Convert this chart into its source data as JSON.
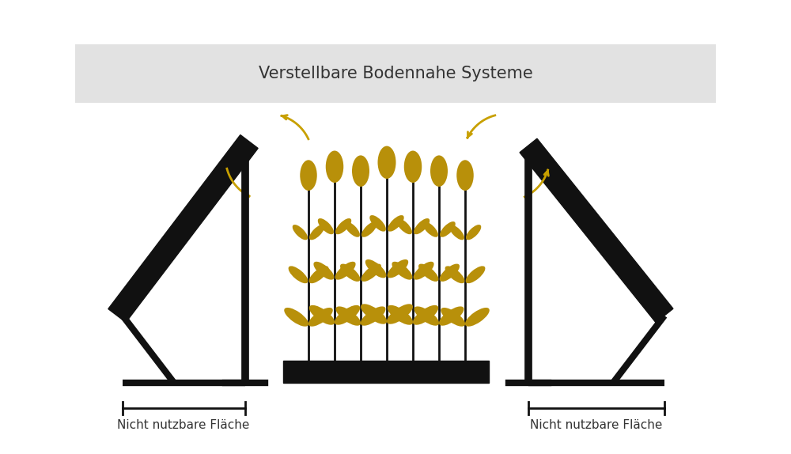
{
  "title": "Verstellbare Bodennahe Systeme",
  "title_fontsize": 15,
  "background_color": "#ffffff",
  "header_bg_color": "#e2e2e2",
  "panel_color": "#111111",
  "wheat_color": "#b8900a",
  "wheat_stem_color": "#111111",
  "arrow_color": "#c8a000",
  "label_text": "Nicht nutzbare Fläche",
  "label_fontsize": 11,
  "fig_width": 10.0,
  "fig_height": 5.74
}
